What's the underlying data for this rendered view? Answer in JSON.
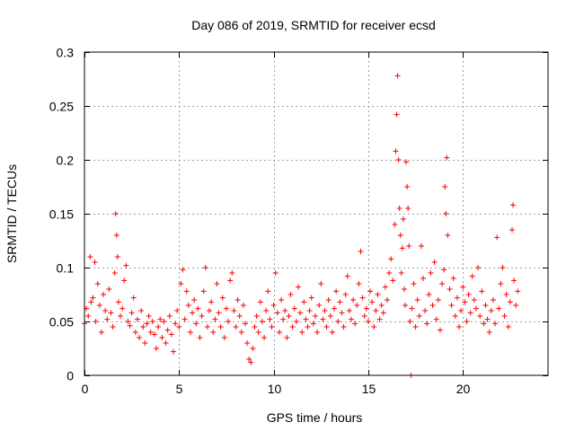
{
  "chart_data": {
    "type": "scatter",
    "title": "Day 086 of 2019, SRMTID for receiver ecsd",
    "xlabel": "GPS time / hours",
    "ylabel": "SRMTID / TECUs",
    "xlim": [
      0,
      24.5
    ],
    "ylim": [
      0,
      0.3
    ],
    "xticks": [
      0,
      5,
      10,
      15,
      20
    ],
    "xtick_labels": [
      "0",
      "5",
      "10",
      "15",
      "20"
    ],
    "yticks": [
      0,
      0.05,
      0.1,
      0.15,
      0.2,
      0.25,
      0.3
    ],
    "ytick_labels": [
      "0",
      "0.05",
      "0.1",
      "0.15",
      "0.2",
      "0.25",
      "0.3"
    ],
    "grid": true,
    "marker": "+",
    "color": "#ff0000",
    "series": [
      {
        "name": "SRMTID",
        "points": [
          [
            0.0,
            0.048
          ],
          [
            0.1,
            0.062
          ],
          [
            0.2,
            0.055
          ],
          [
            0.3,
            0.11
          ],
          [
            0.35,
            0.068
          ],
          [
            0.45,
            0.072
          ],
          [
            0.55,
            0.105
          ],
          [
            0.6,
            0.05
          ],
          [
            0.7,
            0.085
          ],
          [
            0.8,
            0.065
          ],
          [
            0.9,
            0.04
          ],
          [
            1.0,
            0.075
          ],
          [
            1.1,
            0.06
          ],
          [
            1.2,
            0.052
          ],
          [
            1.3,
            0.08
          ],
          [
            1.4,
            0.058
          ],
          [
            1.5,
            0.045
          ],
          [
            1.6,
            0.095
          ],
          [
            1.65,
            0.15
          ],
          [
            1.7,
            0.13
          ],
          [
            1.75,
            0.11
          ],
          [
            1.8,
            0.068
          ],
          [
            1.9,
            0.055
          ],
          [
            2.0,
            0.062
          ],
          [
            2.1,
            0.088
          ],
          [
            2.2,
            0.102
          ],
          [
            2.3,
            0.05
          ],
          [
            2.4,
            0.046
          ],
          [
            2.5,
            0.058
          ],
          [
            2.6,
            0.072
          ],
          [
            2.7,
            0.04
          ],
          [
            2.8,
            0.052
          ],
          [
            2.9,
            0.035
          ],
          [
            3.0,
            0.06
          ],
          [
            3.1,
            0.045
          ],
          [
            3.2,
            0.03
          ],
          [
            3.3,
            0.048
          ],
          [
            3.4,
            0.055
          ],
          [
            3.5,
            0.04
          ],
          [
            3.6,
            0.05
          ],
          [
            3.7,
            0.038
          ],
          [
            3.8,
            0.025
          ],
          [
            3.9,
            0.045
          ],
          [
            4.0,
            0.052
          ],
          [
            4.1,
            0.035
          ],
          [
            4.2,
            0.05
          ],
          [
            4.3,
            0.03
          ],
          [
            4.4,
            0.042
          ],
          [
            4.5,
            0.055
          ],
          [
            4.6,
            0.038
          ],
          [
            4.7,
            0.022
          ],
          [
            4.8,
            0.048
          ],
          [
            4.9,
            0.06
          ],
          [
            5.0,
            0.045
          ],
          [
            5.1,
            0.085
          ],
          [
            5.2,
            0.098
          ],
          [
            5.3,
            0.052
          ],
          [
            5.4,
            0.078
          ],
          [
            5.5,
            0.065
          ],
          [
            5.6,
            0.04
          ],
          [
            5.7,
            0.058
          ],
          [
            5.8,
            0.07
          ],
          [
            5.9,
            0.048
          ],
          [
            6.0,
            0.062
          ],
          [
            6.1,
            0.035
          ],
          [
            6.2,
            0.055
          ],
          [
            6.3,
            0.078
          ],
          [
            6.4,
            0.1
          ],
          [
            6.5,
            0.045
          ],
          [
            6.6,
            0.06
          ],
          [
            6.7,
            0.068
          ],
          [
            6.8,
            0.04
          ],
          [
            6.9,
            0.052
          ],
          [
            7.0,
            0.085
          ],
          [
            7.1,
            0.058
          ],
          [
            7.2,
            0.045
          ],
          [
            7.3,
            0.072
          ],
          [
            7.4,
            0.035
          ],
          [
            7.5,
            0.062
          ],
          [
            7.6,
            0.05
          ],
          [
            7.7,
            0.088
          ],
          [
            7.8,
            0.095
          ],
          [
            7.9,
            0.06
          ],
          [
            8.0,
            0.045
          ],
          [
            8.1,
            0.07
          ],
          [
            8.2,
            0.055
          ],
          [
            8.3,
            0.04
          ],
          [
            8.4,
            0.065
          ],
          [
            8.5,
            0.048
          ],
          [
            8.6,
            0.03
          ],
          [
            8.7,
            0.015
          ],
          [
            8.8,
            0.012
          ],
          [
            8.9,
            0.025
          ],
          [
            9.0,
            0.045
          ],
          [
            9.1,
            0.055
          ],
          [
            9.2,
            0.04
          ],
          [
            9.3,
            0.068
          ],
          [
            9.4,
            0.05
          ],
          [
            9.5,
            0.035
          ],
          [
            9.6,
            0.06
          ],
          [
            9.7,
            0.078
          ],
          [
            9.8,
            0.052
          ],
          [
            9.9,
            0.045
          ],
          [
            10.0,
            0.065
          ],
          [
            10.1,
            0.095
          ],
          [
            10.2,
            0.058
          ],
          [
            10.3,
            0.04
          ],
          [
            10.4,
            0.07
          ],
          [
            10.5,
            0.052
          ],
          [
            10.6,
            0.06
          ],
          [
            10.7,
            0.035
          ],
          [
            10.8,
            0.055
          ],
          [
            10.9,
            0.075
          ],
          [
            11.0,
            0.045
          ],
          [
            11.1,
            0.062
          ],
          [
            11.2,
            0.05
          ],
          [
            11.3,
            0.082
          ],
          [
            11.4,
            0.058
          ],
          [
            11.5,
            0.04
          ],
          [
            11.6,
            0.068
          ],
          [
            11.7,
            0.052
          ],
          [
            11.8,
            0.045
          ],
          [
            11.9,
            0.06
          ],
          [
            12.0,
            0.072
          ],
          [
            12.1,
            0.048
          ],
          [
            12.2,
            0.055
          ],
          [
            12.3,
            0.04
          ],
          [
            12.4,
            0.065
          ],
          [
            12.5,
            0.085
          ],
          [
            12.6,
            0.052
          ],
          [
            12.7,
            0.06
          ],
          [
            12.8,
            0.045
          ],
          [
            12.9,
            0.07
          ],
          [
            13.0,
            0.055
          ],
          [
            13.1,
            0.04
          ],
          [
            13.2,
            0.062
          ],
          [
            13.3,
            0.078
          ],
          [
            13.4,
            0.05
          ],
          [
            13.5,
            0.068
          ],
          [
            13.6,
            0.058
          ],
          [
            13.7,
            0.045
          ],
          [
            13.8,
            0.075
          ],
          [
            13.9,
            0.092
          ],
          [
            14.0,
            0.06
          ],
          [
            14.1,
            0.052
          ],
          [
            14.2,
            0.07
          ],
          [
            14.3,
            0.048
          ],
          [
            14.4,
            0.065
          ],
          [
            14.5,
            0.085
          ],
          [
            14.6,
            0.115
          ],
          [
            14.7,
            0.072
          ],
          [
            14.8,
            0.055
          ],
          [
            14.9,
            0.062
          ],
          [
            15.0,
            0.05
          ],
          [
            15.1,
            0.078
          ],
          [
            15.2,
            0.068
          ],
          [
            15.3,
            0.045
          ],
          [
            15.4,
            0.06
          ],
          [
            15.5,
            0.075
          ],
          [
            15.6,
            0.052
          ],
          [
            15.7,
            0.065
          ],
          [
            15.8,
            0.058
          ],
          [
            15.9,
            0.082
          ],
          [
            16.0,
            0.07
          ],
          [
            16.1,
            0.095
          ],
          [
            16.2,
            0.108
          ],
          [
            16.3,
            0.088
          ],
          [
            16.4,
            0.14
          ],
          [
            16.45,
            0.208
          ],
          [
            16.5,
            0.242
          ],
          [
            16.55,
            0.278
          ],
          [
            16.6,
            0.2
          ],
          [
            16.65,
            0.155
          ],
          [
            16.7,
            0.13
          ],
          [
            16.75,
            0.095
          ],
          [
            16.8,
            0.118
          ],
          [
            16.85,
            0.145
          ],
          [
            16.9,
            0.08
          ],
          [
            16.95,
            0.065
          ],
          [
            17.0,
            0.198
          ],
          [
            17.05,
            0.175
          ],
          [
            17.1,
            0.155
          ],
          [
            17.15,
            0.12
          ],
          [
            17.2,
            0.05
          ],
          [
            17.25,
            0.0
          ],
          [
            17.3,
            0.062
          ],
          [
            17.4,
            0.085
          ],
          [
            17.5,
            0.045
          ],
          [
            17.6,
            0.07
          ],
          [
            17.7,
            0.055
          ],
          [
            17.8,
            0.12
          ],
          [
            17.9,
            0.09
          ],
          [
            18.0,
            0.06
          ],
          [
            18.1,
            0.048
          ],
          [
            18.2,
            0.075
          ],
          [
            18.3,
            0.095
          ],
          [
            18.4,
            0.065
          ],
          [
            18.5,
            0.105
          ],
          [
            18.6,
            0.052
          ],
          [
            18.7,
            0.07
          ],
          [
            18.8,
            0.042
          ],
          [
            18.9,
            0.085
          ],
          [
            19.0,
            0.098
          ],
          [
            19.05,
            0.175
          ],
          [
            19.1,
            0.15
          ],
          [
            19.15,
            0.202
          ],
          [
            19.2,
            0.13
          ],
          [
            19.3,
            0.08
          ],
          [
            19.4,
            0.065
          ],
          [
            19.5,
            0.09
          ],
          [
            19.6,
            0.055
          ],
          [
            19.7,
            0.072
          ],
          [
            19.8,
            0.045
          ],
          [
            19.9,
            0.06
          ],
          [
            20.0,
            0.082
          ],
          [
            20.1,
            0.068
          ],
          [
            20.2,
            0.05
          ],
          [
            20.3,
            0.075
          ],
          [
            20.4,
            0.058
          ],
          [
            20.5,
            0.092
          ],
          [
            20.6,
            0.07
          ],
          [
            20.7,
            0.062
          ],
          [
            20.8,
            0.1
          ],
          [
            20.9,
            0.055
          ],
          [
            21.0,
            0.078
          ],
          [
            21.1,
            0.048
          ],
          [
            21.2,
            0.065
          ],
          [
            21.3,
            0.052
          ],
          [
            21.4,
            0.04
          ],
          [
            21.5,
            0.06
          ],
          [
            21.6,
            0.07
          ],
          [
            21.7,
            0.048
          ],
          [
            21.8,
            0.128
          ],
          [
            21.9,
            0.062
          ],
          [
            22.0,
            0.085
          ],
          [
            22.1,
            0.1
          ],
          [
            22.2,
            0.055
          ],
          [
            22.3,
            0.075
          ],
          [
            22.4,
            0.045
          ],
          [
            22.5,
            0.068
          ],
          [
            22.6,
            0.135
          ],
          [
            22.65,
            0.158
          ],
          [
            22.7,
            0.088
          ],
          [
            22.8,
            0.065
          ],
          [
            22.9,
            0.078
          ]
        ]
      }
    ]
  }
}
